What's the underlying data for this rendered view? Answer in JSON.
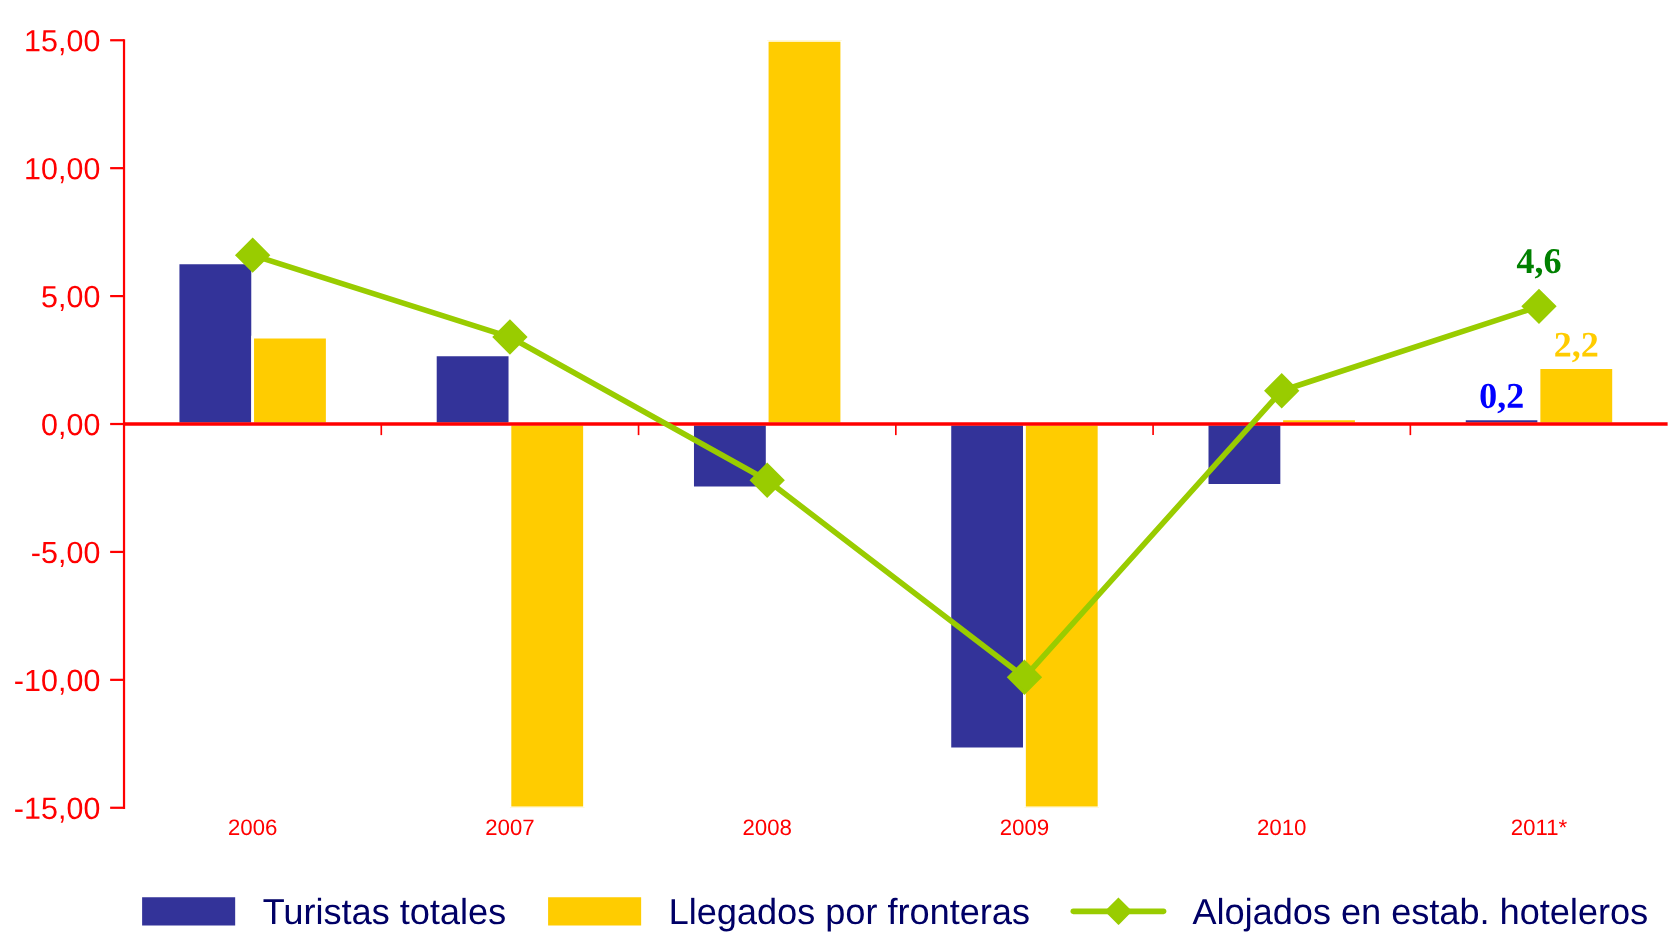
{
  "chart_data": {
    "type": "bar",
    "categories": [
      "2006",
      "2007",
      "2008",
      "2009",
      "2010",
      "2011*"
    ],
    "series": [
      {
        "name": "Turistas totales",
        "color": "#333399",
        "values": [
          6.3,
          2.7,
          -2.5,
          -12.7,
          -2.4,
          0.2
        ],
        "value_labels": [
          null,
          null,
          null,
          null,
          null,
          "0,2"
        ]
      },
      {
        "name": "Llegados por fronteras",
        "color": "#ffcc00",
        "values": [
          3.4,
          -15,
          15,
          -15,
          0.2,
          2.2
        ],
        "value_labels": [
          null,
          null,
          null,
          null,
          null,
          "2,2"
        ]
      },
      {
        "name": "Alojados en estab. hoteleros",
        "type": "line",
        "color": "#99cc00",
        "marker": "diamond",
        "values": [
          6.6,
          3.4,
          -2.2,
          -9.9,
          1.3,
          4.6
        ],
        "value_labels": [
          null,
          null,
          null,
          null,
          null,
          "4,6"
        ]
      }
    ],
    "ylim": [
      -15,
      15
    ],
    "yticks": [
      {
        "value": -15,
        "label": "-15,00"
      },
      {
        "value": -10,
        "label": "-10,00"
      },
      {
        "value": -5,
        "label": "-5,00"
      },
      {
        "value": 0,
        "label": "0,00"
      },
      {
        "value": 5,
        "label": "5,00"
      },
      {
        "value": 10,
        "label": "10,00"
      },
      {
        "value": 15,
        "label": "15,00"
      }
    ],
    "ref_lines": [
      {
        "axis": "y",
        "value": 0,
        "label": null,
        "color": "#ff0000"
      }
    ],
    "grid": false,
    "legend": "bottom"
  }
}
